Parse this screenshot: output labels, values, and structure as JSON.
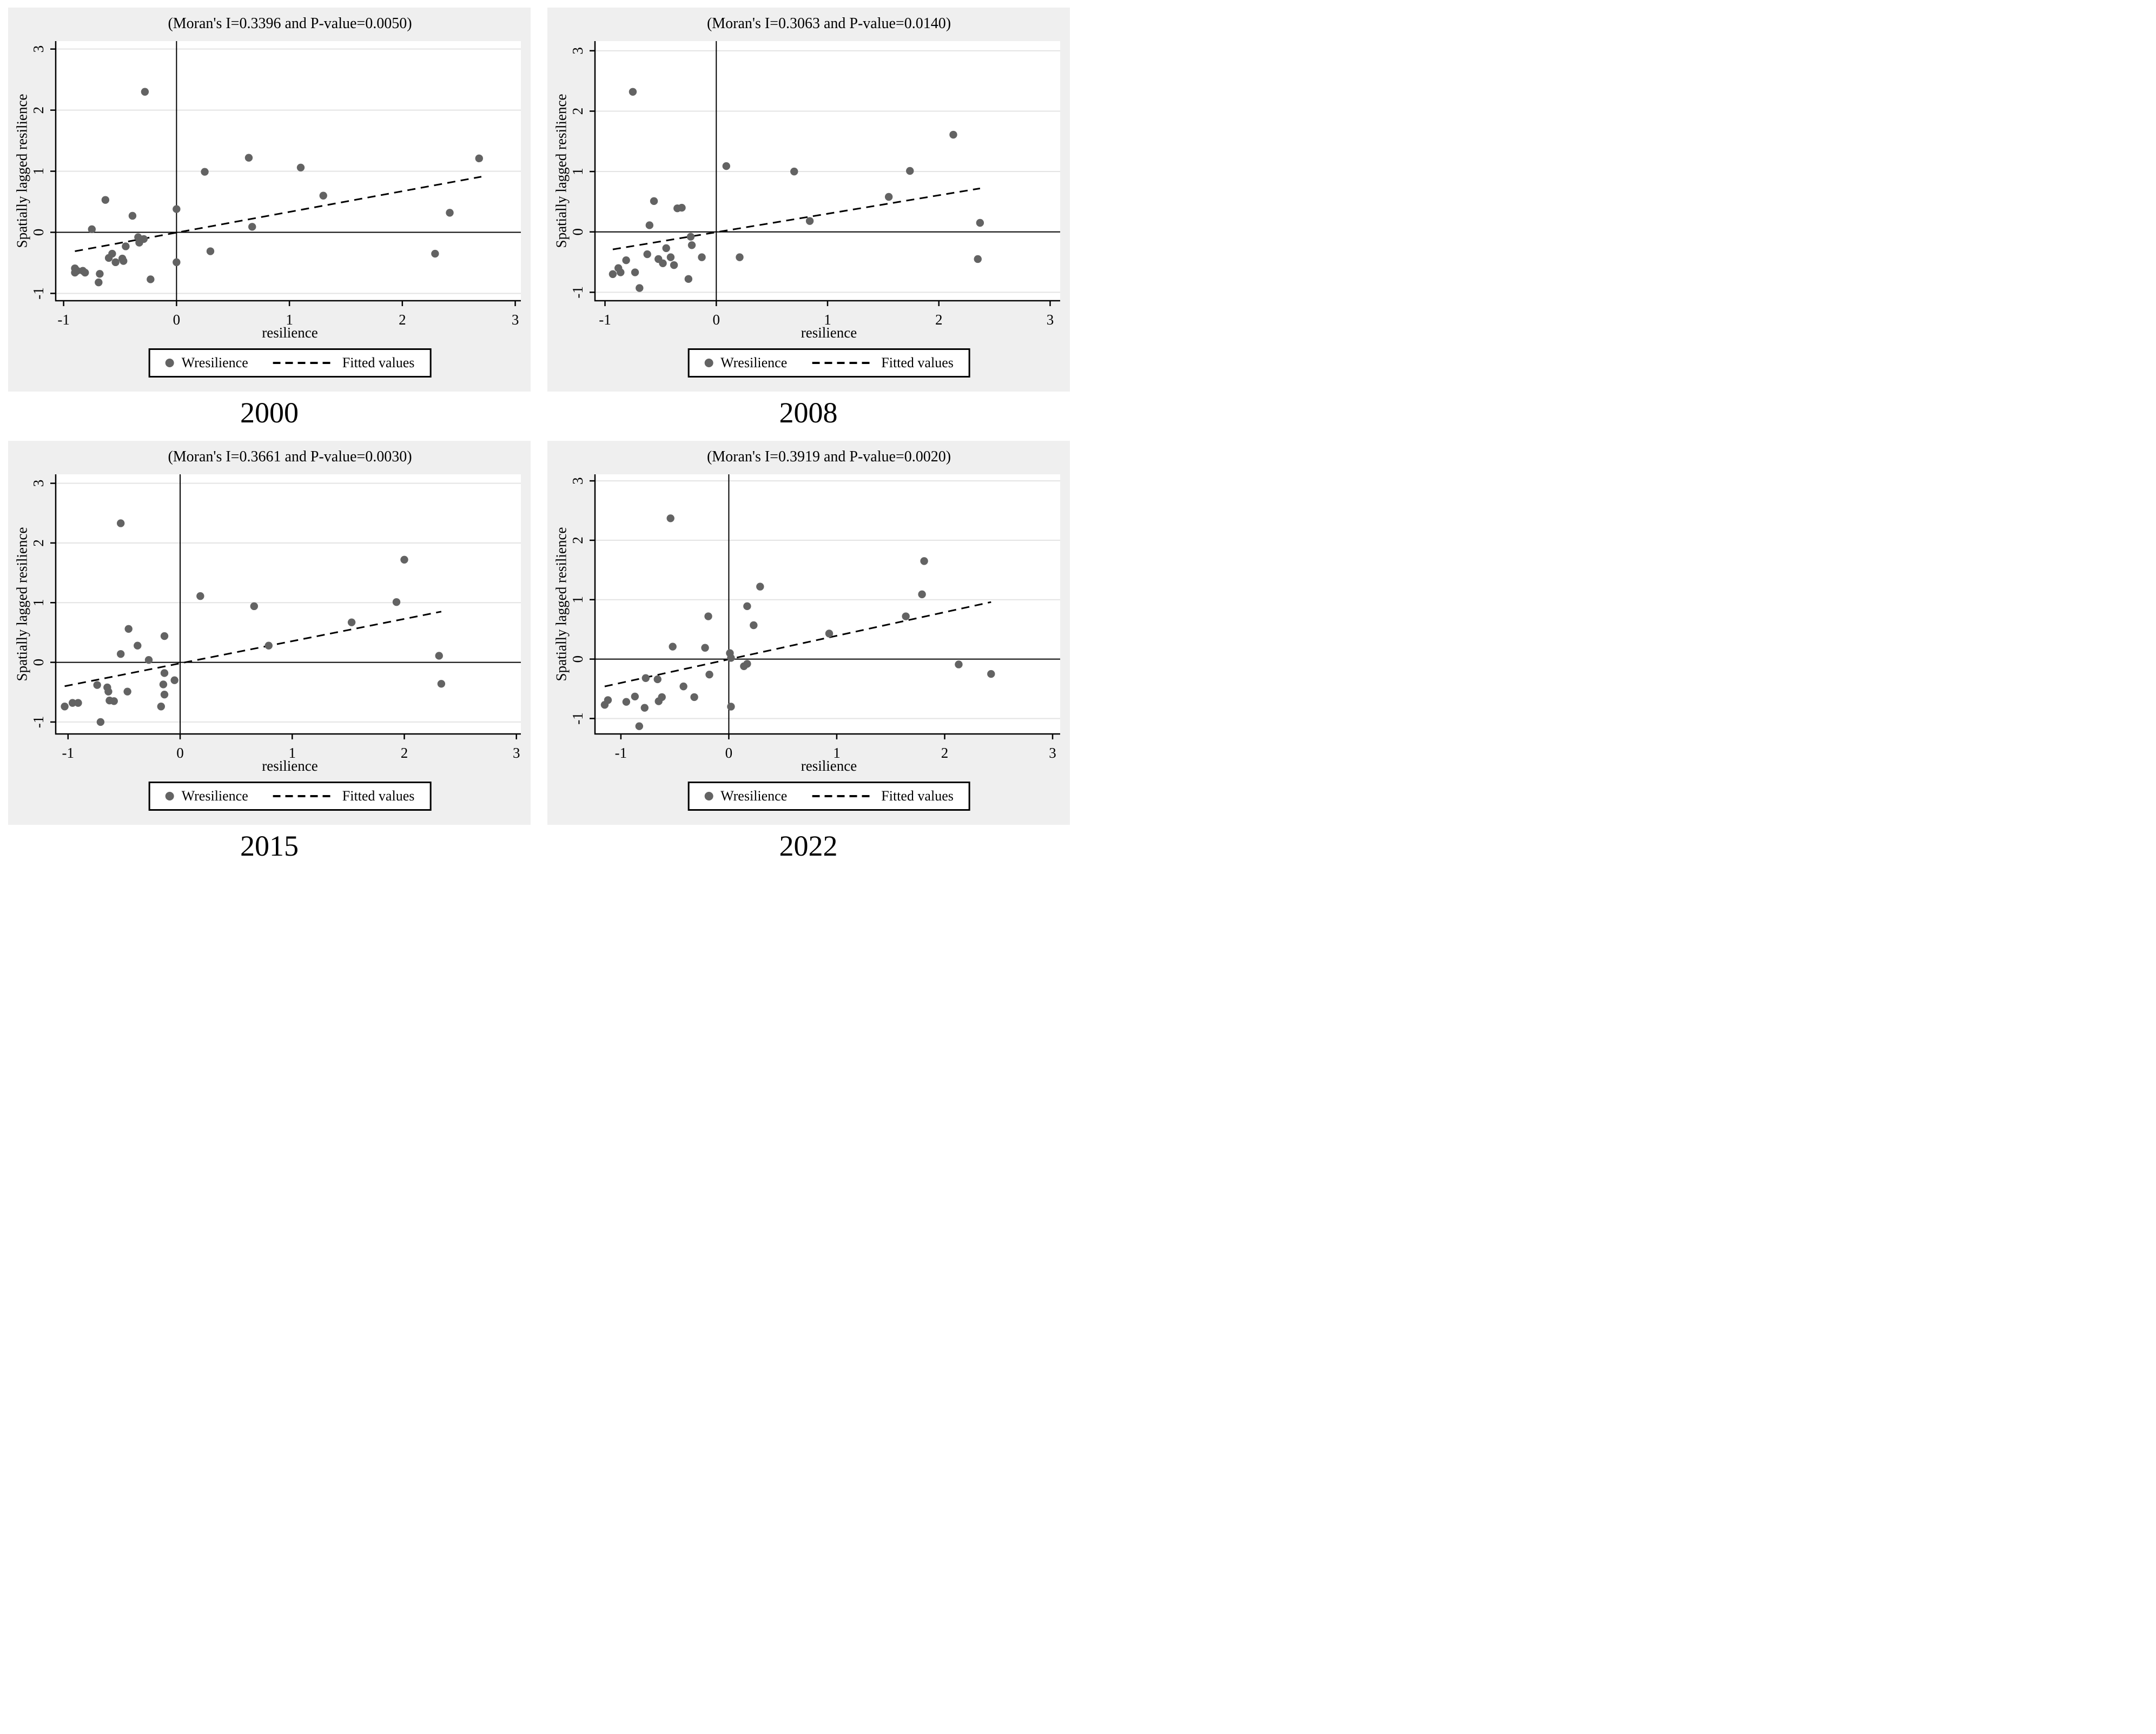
{
  "page": {
    "background": "#ffffff"
  },
  "colors": {
    "figure_bg": "#efefef",
    "plot_bg": "#ffffff",
    "gridline": "#e3e3e3",
    "axis": "#000000",
    "dot": "#636363",
    "fit_line": "#000000",
    "text": "#000000",
    "legend_bg": "#ffffff",
    "legend_border": "#000000"
  },
  "chart_data": [
    {
      "type": "scatter",
      "year": "2000",
      "title": "(Moran's I=0.3396 and P-value=0.0050)",
      "moran_i": 0.3396,
      "p_value": 0.005,
      "xlabel": "resilience",
      "ylabel": "Spatially lagged resilience",
      "legend": [
        "Wresilience",
        "Fitted values"
      ],
      "legend_position": "bottom-center",
      "grid": "horizontal-only",
      "xlim": [
        -1.07,
        3.05
      ],
      "ylim": [
        -1.12,
        3.13
      ],
      "xticks": [
        -1,
        0,
        1,
        2,
        3
      ],
      "yticks": [
        -1,
        0,
        1,
        2,
        3
      ],
      "points": [
        [
          -0.28,
          2.3
        ],
        [
          0.64,
          1.22
        ],
        [
          1.1,
          1.06
        ],
        [
          2.68,
          1.21
        ],
        [
          0.25,
          0.99
        ],
        [
          1.3,
          0.6
        ],
        [
          -0.63,
          0.53
        ],
        [
          0.0,
          0.38
        ],
        [
          -0.39,
          0.27
        ],
        [
          2.42,
          0.32
        ],
        [
          -0.75,
          0.05
        ],
        [
          0.67,
          0.09
        ],
        [
          -0.34,
          -0.08
        ],
        [
          -0.29,
          -0.11
        ],
        [
          -0.33,
          -0.17
        ],
        [
          -0.45,
          -0.23
        ],
        [
          0.3,
          -0.31
        ],
        [
          2.29,
          -0.35
        ],
        [
          -0.57,
          -0.35
        ],
        [
          -0.6,
          -0.42
        ],
        [
          -0.48,
          -0.43
        ],
        [
          -0.47,
          -0.47
        ],
        [
          -0.54,
          -0.49
        ],
        [
          0.0,
          -0.49
        ],
        [
          -0.9,
          -0.59
        ],
        [
          -0.88,
          -0.63
        ],
        [
          -0.83,
          -0.63
        ],
        [
          -0.9,
          -0.66
        ],
        [
          -0.81,
          -0.66
        ],
        [
          -0.68,
          -0.68
        ],
        [
          -0.23,
          -0.77
        ],
        [
          -0.69,
          -0.82
        ]
      ],
      "fit": {
        "x1": -0.9,
        "y1": -0.31,
        "x2": 2.7,
        "y2": 0.91
      }
    },
    {
      "type": "scatter",
      "year": "2008",
      "title": "(Moran's I=0.3063 and P-value=0.0140)",
      "moran_i": 0.3063,
      "p_value": 0.014,
      "xlabel": "resilience",
      "ylabel": "Spatially lagged resilience",
      "legend": [
        "Wresilience",
        "Fitted values"
      ],
      "legend_position": "bottom-center",
      "grid": "horizontal-only",
      "xlim": [
        -1.09,
        3.09
      ],
      "ylim": [
        -1.14,
        3.16
      ],
      "xticks": [
        -1,
        0,
        1,
        2,
        3
      ],
      "yticks": [
        -1,
        0,
        1,
        2,
        3
      ],
      "points": [
        [
          -0.75,
          2.32
        ],
        [
          2.13,
          1.61
        ],
        [
          0.09,
          1.09
        ],
        [
          1.74,
          1.01
        ],
        [
          0.7,
          1.0
        ],
        [
          1.55,
          0.58
        ],
        [
          -0.56,
          0.51
        ],
        [
          -0.31,
          0.4
        ],
        [
          -0.35,
          0.39
        ],
        [
          0.84,
          0.18
        ],
        [
          2.37,
          0.15
        ],
        [
          -0.6,
          0.11
        ],
        [
          -0.23,
          -0.08
        ],
        [
          -0.22,
          -0.22
        ],
        [
          -0.45,
          -0.27
        ],
        [
          -0.62,
          -0.37
        ],
        [
          -0.41,
          -0.42
        ],
        [
          -0.13,
          -0.42
        ],
        [
          0.21,
          -0.42
        ],
        [
          2.35,
          -0.45
        ],
        [
          -0.52,
          -0.45
        ],
        [
          -0.81,
          -0.47
        ],
        [
          -0.48,
          -0.52
        ],
        [
          -0.38,
          -0.55
        ],
        [
          -0.88,
          -0.6
        ],
        [
          -0.86,
          -0.67
        ],
        [
          -0.73,
          -0.67
        ],
        [
          -0.93,
          -0.7
        ],
        [
          -0.25,
          -0.78
        ],
        [
          -0.69,
          -0.93
        ]
      ],
      "fit": {
        "x1": -0.93,
        "y1": -0.29,
        "x2": 2.37,
        "y2": 0.72
      }
    },
    {
      "type": "scatter",
      "year": "2015",
      "title": "(Moran's I=0.3661 and P-value=0.0030)",
      "moran_i": 0.3661,
      "p_value": 0.003,
      "xlabel": "resilience",
      "ylabel": "Spatially lagged resilience",
      "legend": [
        "Wresilience",
        "Fitted values"
      ],
      "legend_position": "bottom-center",
      "grid": "horizontal-only",
      "xlim": [
        -1.11,
        3.04
      ],
      "ylim": [
        -1.2,
        3.15
      ],
      "xticks": [
        -1,
        0,
        1,
        2,
        3
      ],
      "yticks": [
        -1,
        0,
        1,
        2,
        3
      ],
      "points": [
        [
          -0.53,
          2.33
        ],
        [
          2.0,
          1.72
        ],
        [
          0.18,
          1.11
        ],
        [
          1.93,
          1.01
        ],
        [
          0.66,
          0.94
        ],
        [
          1.53,
          0.67
        ],
        [
          -0.46,
          0.56
        ],
        [
          -0.14,
          0.44
        ],
        [
          -0.38,
          0.28
        ],
        [
          0.79,
          0.28
        ],
        [
          -0.53,
          0.14
        ],
        [
          2.31,
          0.11
        ],
        [
          -0.28,
          0.04
        ],
        [
          -0.14,
          -0.18
        ],
        [
          -0.05,
          -0.3
        ],
        [
          2.33,
          -0.36
        ],
        [
          -0.15,
          -0.37
        ],
        [
          -0.74,
          -0.38
        ],
        [
          -0.65,
          -0.42
        ],
        [
          -0.64,
          -0.49
        ],
        [
          -0.47,
          -0.49
        ],
        [
          -0.14,
          -0.54
        ],
        [
          -0.63,
          -0.64
        ],
        [
          -0.59,
          -0.65
        ],
        [
          -0.96,
          -0.68
        ],
        [
          -0.91,
          -0.68
        ],
        [
          -1.03,
          -0.74
        ],
        [
          -0.17,
          -0.74
        ],
        [
          -0.71,
          -1.0
        ]
      ],
      "fit": {
        "x1": -1.03,
        "y1": -0.4,
        "x2": 2.33,
        "y2": 0.85
      }
    },
    {
      "type": "scatter",
      "year": "2022",
      "title": "(Moran's I=0.3919 and P-value=0.0020)",
      "moran_i": 0.3919,
      "p_value": 0.002,
      "xlabel": "resilience",
      "ylabel": "Spatially lagged resilience",
      "legend": [
        "Wresilience",
        "Fitted values"
      ],
      "legend_position": "bottom-center",
      "grid": "horizontal-only",
      "xlim": [
        -1.24,
        3.07
      ],
      "ylim": [
        -1.26,
        3.11
      ],
      "xticks": [
        -1,
        0,
        1,
        2,
        3
      ],
      "yticks": [
        -1,
        0,
        1,
        2,
        3
      ],
      "points": [
        [
          -0.54,
          2.37
        ],
        [
          1.81,
          1.65
        ],
        [
          0.29,
          1.22
        ],
        [
          1.79,
          1.09
        ],
        [
          0.17,
          0.89
        ],
        [
          -0.19,
          0.72
        ],
        [
          1.64,
          0.72
        ],
        [
          0.23,
          0.57
        ],
        [
          0.93,
          0.43
        ],
        [
          -0.52,
          0.21
        ],
        [
          -0.22,
          0.19
        ],
        [
          0.01,
          0.1
        ],
        [
          0.02,
          0.02
        ],
        [
          0.17,
          -0.08
        ],
        [
          2.13,
          -0.09
        ],
        [
          0.14,
          -0.12
        ],
        [
          2.43,
          -0.25
        ],
        [
          -0.18,
          -0.26
        ],
        [
          -0.77,
          -0.32
        ],
        [
          -0.66,
          -0.34
        ],
        [
          -0.42,
          -0.46
        ],
        [
          -0.87,
          -0.63
        ],
        [
          -0.62,
          -0.64
        ],
        [
          -0.32,
          -0.64
        ],
        [
          -1.12,
          -0.69
        ],
        [
          -0.65,
          -0.71
        ],
        [
          -0.95,
          -0.72
        ],
        [
          -1.15,
          -0.77
        ],
        [
          0.02,
          -0.8
        ],
        [
          -0.78,
          -0.82
        ],
        [
          -0.83,
          -1.13
        ]
      ],
      "fit": {
        "x1": -1.15,
        "y1": -0.46,
        "x2": 2.43,
        "y2": 0.96
      }
    }
  ]
}
